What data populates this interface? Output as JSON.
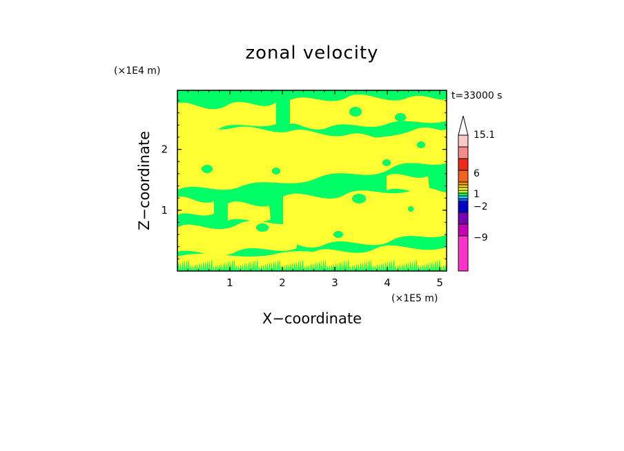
{
  "chart_data": {
    "type": "heatmap",
    "title": "zonal velocity",
    "xlabel": "X−coordinate",
    "ylabel": "Z−coordinate",
    "x_unit": "(×1E5 m)",
    "y_unit": "(×1E4 m)",
    "time_label": "t=33000 s",
    "xlim": [
      0,
      5.13
    ],
    "ylim": [
      0,
      2.97
    ],
    "x_ticks": [
      1,
      2,
      3,
      4,
      5
    ],
    "y_ticks": [
      1,
      2
    ],
    "x_tick_labels": [
      "1",
      "2",
      "3",
      "4",
      "5"
    ],
    "y_tick_labels": [
      "1",
      "2"
    ],
    "grid": false,
    "colorbar": {
      "labels": [
        "15.1",
        "6",
        "1",
        "−2",
        "−9"
      ],
      "label_values": [
        15.1,
        6,
        1,
        -2,
        -9
      ],
      "colors": [
        "#ffffff",
        "#ffc8c8",
        "#f58a8a",
        "#ee2a1c",
        "#f0641e",
        "#ff9900",
        "#ffd200",
        "#ffff33",
        "#ccff33",
        "#00ff66",
        "#33ccff",
        "#0066ff",
        "#0000c8",
        "#7a00b4",
        "#c800b4",
        "#ff33cc"
      ]
    },
    "field_colors": {
      "positive": "#ffff33",
      "negative": "#00ff66"
    }
  }
}
